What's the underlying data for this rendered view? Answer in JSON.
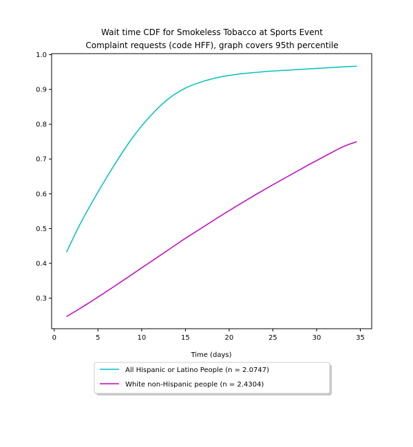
{
  "chart_data": {
    "type": "line",
    "title_line1": "Wait time CDF for Smokeless Tobacco at Sports Event",
    "title_line2": "Complaint  requests (code HFF), graph covers 95th percentile",
    "xlabel": "Time (days)",
    "ylabel": "",
    "xlim": [
      -0.3,
      36.3
    ],
    "ylim": [
      0.212,
      1.003
    ],
    "xticks": [
      0,
      5,
      10,
      15,
      20,
      25,
      30,
      35
    ],
    "yticks": [
      0.3,
      0.4,
      0.5,
      0.6,
      0.7,
      0.8,
      0.9,
      1.0
    ],
    "ytick_labels": [
      "0.3",
      "0.4",
      "0.5",
      "0.6",
      "0.7",
      "0.8",
      "0.9",
      "1.0"
    ],
    "grid": false,
    "legend_position": "below plot, centered",
    "series": [
      {
        "name": "All Hispanic or Latino People (n = 2.0747)",
        "color": "#00bfbf",
        "x": [
          1.4,
          3,
          5,
          7,
          9,
          11,
          13,
          15,
          17,
          19,
          21,
          23,
          25,
          27,
          29,
          31,
          33,
          34.6
        ],
        "y": [
          0.432,
          0.515,
          0.605,
          0.688,
          0.763,
          0.824,
          0.872,
          0.904,
          0.923,
          0.936,
          0.944,
          0.949,
          0.953,
          0.956,
          0.959,
          0.962,
          0.965,
          0.967
        ]
      },
      {
        "name": "White non-Hispanic people (n = 2.4304)",
        "color": "#bf00bf",
        "x": [
          1.4,
          3,
          5,
          7,
          9,
          11,
          13,
          15,
          17,
          19,
          21,
          23,
          25,
          27,
          29,
          31,
          33,
          34.6
        ],
        "y": [
          0.247,
          0.271,
          0.303,
          0.336,
          0.37,
          0.404,
          0.438,
          0.472,
          0.504,
          0.536,
          0.567,
          0.597,
          0.626,
          0.654,
          0.682,
          0.709,
          0.735,
          0.75
        ]
      }
    ]
  }
}
